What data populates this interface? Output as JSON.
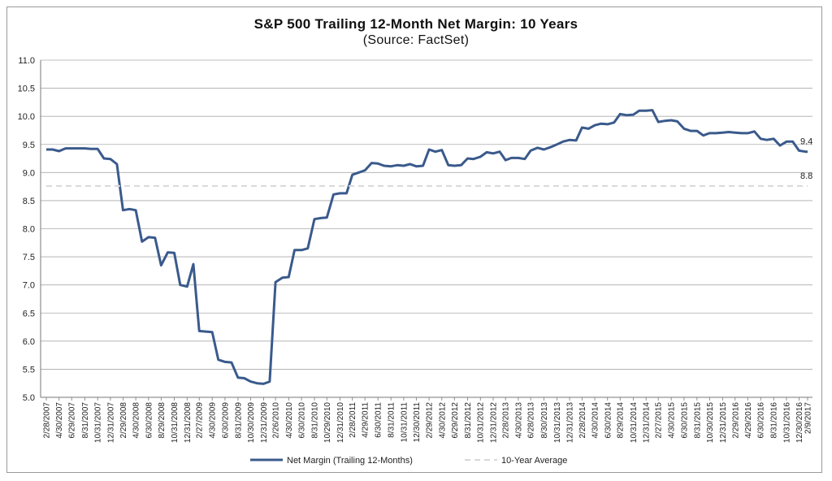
{
  "chart_data": {
    "type": "line",
    "title": "S&P 500 Trailing 12-Month Net Margin: 10 Years",
    "subtitle": "(Source: FactSet)",
    "xlabel": "",
    "ylabel": "",
    "ylim": [
      5.0,
      11.0
    ],
    "yticks": [
      "5.0",
      "5.5",
      "6.0",
      "6.5",
      "7.0",
      "7.5",
      "8.0",
      "8.5",
      "9.0",
      "9.5",
      "10.0",
      "10.5",
      "11.0"
    ],
    "grid": true,
    "legend": "bottom",
    "x_tick_labels": [
      "2/28/2007",
      "4/30/2007",
      "6/29/2007",
      "8/31/2007",
      "10/31/2007",
      "12/31/2007",
      "2/29/2008",
      "4/30/2008",
      "6/30/2008",
      "8/29/2008",
      "10/31/2008",
      "12/31/2008",
      "2/27/2009",
      "4/30/2009",
      "6/30/2009",
      "8/31/2009",
      "10/30/2009",
      "12/31/2009",
      "2/26/2010",
      "4/30/2010",
      "6/30/2010",
      "8/31/2010",
      "10/29/2010",
      "12/31/2010",
      "2/28/2011",
      "4/29/2011",
      "6/30/2011",
      "8/31/2011",
      "10/31/2011",
      "12/30/2011",
      "2/29/2012",
      "4/30/2012",
      "6/29/2012",
      "8/31/2012",
      "10/31/2012",
      "12/31/2012",
      "2/28/2013",
      "4/30/2013",
      "6/28/2013",
      "8/30/2013",
      "10/31/2013",
      "12/31/2013",
      "2/28/2014",
      "4/30/2014",
      "6/30/2014",
      "8/29/2014",
      "10/31/2014",
      "12/31/2014",
      "2/27/2015",
      "4/30/2015",
      "6/30/2015",
      "8/31/2015",
      "10/30/2015",
      "12/31/2015",
      "2/29/2016",
      "4/29/2016",
      "6/30/2016",
      "8/31/2016",
      "10/31/2016",
      "12/30/2016",
      "2/9/2017"
    ],
    "series": [
      {
        "name": "Net Margin (Trailing 12-Months)",
        "color": "#3a5a8c",
        "style": "solid",
        "x": [
          "2/28/2007",
          "3/30/2007",
          "4/30/2007",
          "5/31/2007",
          "6/29/2007",
          "7/31/2007",
          "8/31/2007",
          "9/28/2007",
          "10/31/2007",
          "11/30/2007",
          "12/31/2007",
          "1/31/2008",
          "2/29/2008",
          "3/31/2008",
          "4/30/2008",
          "5/30/2008",
          "6/30/2008",
          "7/31/2008",
          "8/29/2008",
          "9/30/2008",
          "10/31/2008",
          "11/28/2008",
          "12/31/2008",
          "1/30/2009",
          "2/27/2009",
          "3/31/2009",
          "4/30/2009",
          "5/29/2009",
          "6/30/2009",
          "7/31/2009",
          "8/31/2009",
          "9/30/2009",
          "10/30/2009",
          "11/30/2009",
          "12/31/2009",
          "1/29/2010",
          "2/26/2010",
          "3/31/2010",
          "4/30/2010",
          "5/28/2010",
          "6/30/2010",
          "7/30/2010",
          "8/31/2010",
          "9/30/2010",
          "10/29/2010",
          "11/30/2010",
          "12/31/2010",
          "1/31/2011",
          "2/28/2011",
          "3/31/2011",
          "4/29/2011",
          "5/31/2011",
          "6/30/2011",
          "7/29/2011",
          "8/31/2011",
          "9/30/2011",
          "10/31/2011",
          "11/30/2011",
          "12/30/2011",
          "1/31/2012",
          "2/29/2012",
          "3/30/2012",
          "4/30/2012",
          "5/31/2012",
          "6/29/2012",
          "7/31/2012",
          "8/31/2012",
          "9/28/2012",
          "10/31/2012",
          "11/30/2012",
          "12/31/2012",
          "1/31/2013",
          "2/28/2013",
          "3/28/2013",
          "4/30/2013",
          "5/31/2013",
          "6/28/2013",
          "7/31/2013",
          "8/30/2013",
          "9/30/2013",
          "10/31/2013",
          "11/29/2013",
          "12/31/2013",
          "1/31/2014",
          "2/28/2014",
          "3/31/2014",
          "4/30/2014",
          "5/30/2014",
          "6/30/2014",
          "7/31/2014",
          "8/29/2014",
          "9/30/2014",
          "10/31/2014",
          "11/28/2014",
          "12/31/2014",
          "1/30/2015",
          "2/27/2015",
          "3/31/2015",
          "4/30/2015",
          "5/29/2015",
          "6/30/2015",
          "7/31/2015",
          "8/31/2015",
          "9/30/2015",
          "10/30/2015",
          "11/30/2015",
          "12/31/2015",
          "1/29/2016",
          "2/29/2016",
          "3/31/2016",
          "4/29/2016",
          "5/31/2016",
          "6/30/2016",
          "7/29/2016",
          "8/31/2016",
          "9/30/2016",
          "10/31/2016",
          "11/30/2016",
          "12/30/2016",
          "1/31/2017",
          "2/9/2017"
        ],
        "values": [
          9.41,
          9.41,
          9.38,
          9.43,
          9.43,
          9.43,
          9.43,
          9.42,
          9.42,
          9.25,
          9.24,
          9.15,
          8.33,
          8.35,
          8.33,
          7.77,
          7.85,
          7.84,
          7.35,
          7.58,
          7.57,
          7.0,
          6.97,
          7.37,
          6.18,
          6.17,
          6.16,
          5.67,
          5.63,
          5.62,
          5.35,
          5.34,
          5.28,
          5.25,
          5.24,
          5.28,
          7.05,
          7.13,
          7.14,
          7.62,
          7.62,
          7.65,
          8.17,
          8.19,
          8.2,
          8.61,
          8.63,
          8.63,
          8.96,
          9.0,
          9.04,
          9.17,
          9.16,
          9.12,
          9.11,
          9.13,
          9.12,
          9.15,
          9.11,
          9.12,
          9.41,
          9.37,
          9.4,
          9.13,
          9.12,
          9.13,
          9.25,
          9.24,
          9.28,
          9.36,
          9.34,
          9.37,
          9.22,
          9.26,
          9.26,
          9.24,
          9.39,
          9.44,
          9.41,
          9.45,
          9.5,
          9.55,
          9.58,
          9.57,
          9.8,
          9.78,
          9.84,
          9.87,
          9.86,
          9.89,
          10.04,
          10.02,
          10.03,
          10.1,
          10.1,
          10.11,
          9.9,
          9.92,
          9.93,
          9.91,
          9.78,
          9.74,
          9.74,
          9.66,
          9.7,
          9.7,
          9.71,
          9.72,
          9.71,
          9.7,
          9.7,
          9.73,
          9.6,
          9.58,
          9.6,
          9.48,
          9.55,
          9.55,
          9.39,
          9.37,
          9.37
        ],
        "end_label": "9.4"
      },
      {
        "name": "10-Year Average",
        "color": "#d8d8d8",
        "style": "dashed",
        "x": [
          "2/28/2007",
          "2/9/2017"
        ],
        "values": [
          8.76,
          8.76
        ],
        "end_label": "8.8"
      }
    ]
  }
}
